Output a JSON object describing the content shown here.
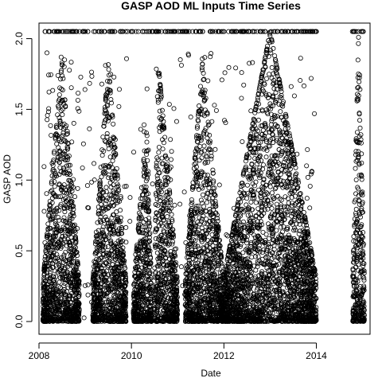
{
  "chart_data": {
    "type": "scatter",
    "title": "GASP AOD ML Inputs Time Series",
    "xlabel": "Date",
    "ylabel": "GASP AOD",
    "x_axis_type": "date",
    "xlim": [
      "2008-01-01",
      "2015-03-01"
    ],
    "ylim": [
      -0.09,
      2.11
    ],
    "x_ticks": [
      "2008",
      "2010",
      "2012",
      "2014"
    ],
    "y_ticks": [
      "0.0",
      "0.5",
      "1.0",
      "1.5",
      "2.0"
    ],
    "marker": "open-circle",
    "colors": {
      "marker": "#000000",
      "axis": "#000000",
      "background": "#ffffff"
    },
    "grid": false,
    "legend": "none",
    "series": [
      {
        "dense_periods": [
          {
            "start": "2008-02-01",
            "end": "2008-11-15",
            "peak": "2008-07-01",
            "peak_value": 1.83
          },
          {
            "start": "2009-03-01",
            "end": "2009-11-20",
            "peak": "2009-07-01",
            "peak_value": 1.83
          },
          {
            "start": "2010-01-15",
            "end": "2010-06-10",
            "peak": "2010-05-01",
            "peak_value": 1.4
          },
          {
            "start": "2010-07-01",
            "end": "2010-12-31",
            "peak": "2010-08-01",
            "peak_value": 1.83
          },
          {
            "start": "2011-03-01",
            "end": "2011-12-31",
            "peak": "2011-07-15",
            "peak_value": 1.83
          },
          {
            "start": "2012-01-01",
            "end": "2014-01-01",
            "peak": "2013-01-01",
            "peak_value": 2.05
          },
          {
            "start": "2014-10-15",
            "end": "2015-01-15",
            "peak": "2014-12-01",
            "peak_value": 2.05
          }
        ],
        "saturation_value": 2.05,
        "min_value": 0.0
      }
    ]
  }
}
